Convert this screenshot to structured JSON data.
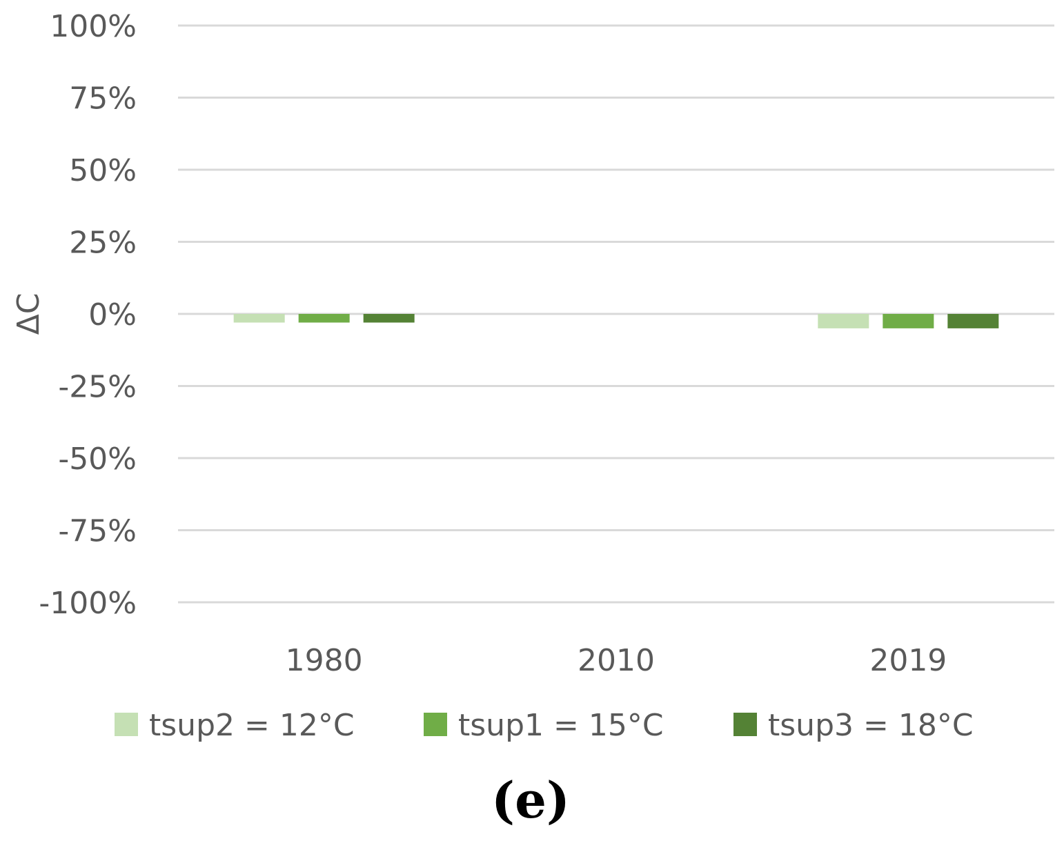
{
  "chart_data": {
    "type": "bar",
    "title": "",
    "xlabel": "",
    "ylabel": "ΔC",
    "ylim": [
      -1.0,
      1.0
    ],
    "y_ticks": [
      1.0,
      0.75,
      0.5,
      0.25,
      0.0,
      -0.25,
      -0.5,
      -0.75,
      -1.0
    ],
    "y_tick_labels": [
      "100%",
      "75%",
      "50%",
      "25%",
      "0%",
      "-25%",
      "-50%",
      "-75%",
      "-100%"
    ],
    "grid": true,
    "legend_position": "bottom",
    "categories": [
      "1980",
      "2010",
      "2019"
    ],
    "series": [
      {
        "name": "tsup2 = 12°C",
        "color": "#c5e0b4",
        "values": [
          -0.03,
          0.0,
          -0.05
        ]
      },
      {
        "name": "tsup1 = 15°C",
        "color": "#70ad47",
        "values": [
          -0.03,
          0.0,
          -0.05
        ]
      },
      {
        "name": "tsup3 = 18°C",
        "color": "#548235",
        "values": [
          -0.03,
          0.0,
          -0.05
        ]
      }
    ]
  },
  "panel_label": "(e)"
}
